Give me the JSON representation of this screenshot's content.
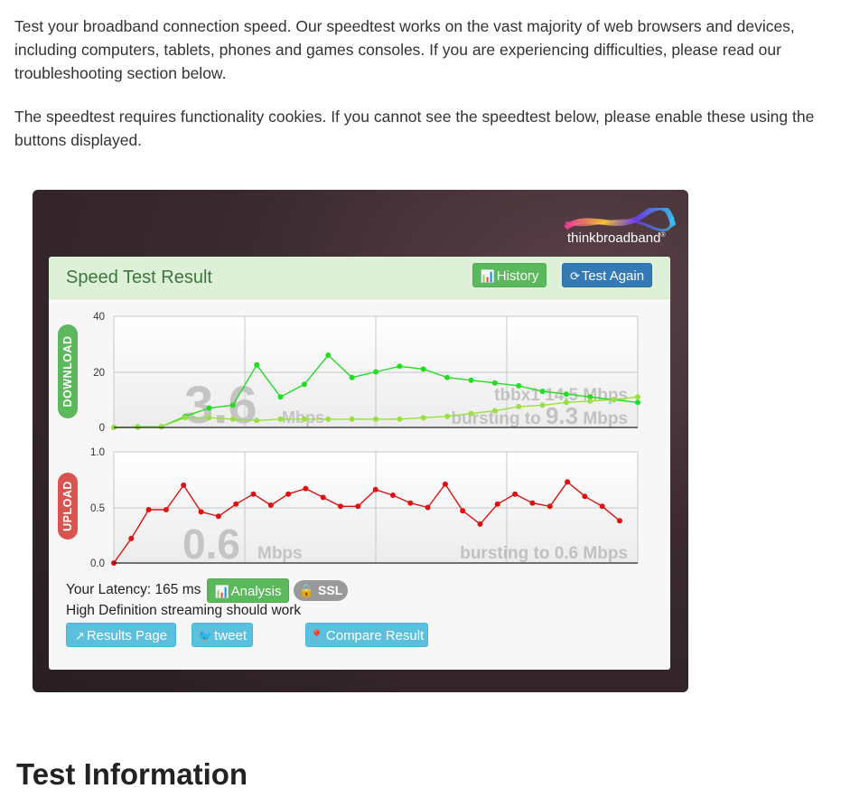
{
  "intro": {
    "p1": "Test your broadband connection speed. Our speedtest works on the vast majority of web browsers and devices, including computers, tablets, phones and games consoles. If you are experiencing difficulties, please read our troubleshooting section below.",
    "p2": "The speedtest requires functionality cookies. If you cannot see the speedtest below, please enable these using the buttons displayed."
  },
  "logo": {
    "text_prefix": "think",
    "text_brand": "broadband",
    "mark": "®"
  },
  "panel": {
    "title": "Speed Test Result",
    "history_button": "History",
    "test_again_button": "Test Again"
  },
  "download": {
    "label": "DOWNLOAD",
    "speed": "3.6",
    "unit": "Mbps",
    "server_text": "tbbx1 14.5 Mbps",
    "bursting_prefix": "bursting to",
    "bursting_value": "9.3",
    "bursting_unit": "Mbps",
    "y_ticks": [
      "40",
      "20",
      "0"
    ],
    "color": "#22dd22",
    "burst_color": "#99e040"
  },
  "upload": {
    "label": "UPLOAD",
    "speed": "0.6",
    "unit": "Mbps",
    "bursting_text": "bursting to 0.6 Mbps",
    "y_ticks": [
      "1.0",
      "0.5",
      "0.0"
    ],
    "color": "#dd1111"
  },
  "chart_data": [
    {
      "type": "line",
      "title": "DOWNLOAD",
      "ylim": [
        0,
        40
      ],
      "grid": true,
      "series": [
        {
          "values": [
            0,
            0.2,
            0.3,
            4,
            7,
            8,
            22.5,
            11,
            15.5,
            26,
            18,
            20,
            22,
            21,
            18,
            17,
            16,
            15,
            13,
            12,
            11,
            10,
            9
          ]
        },
        {
          "values": [
            0,
            0.1,
            0.3,
            3.5,
            3.5,
            3,
            2.5,
            3,
            3,
            3,
            3,
            3,
            3,
            3.5,
            4,
            5,
            6,
            7.5,
            8,
            9,
            9.5,
            10,
            11
          ]
        }
      ]
    },
    {
      "type": "line",
      "title": "UPLOAD",
      "ylim": [
        0,
        1.0
      ],
      "grid": true,
      "series": [
        {
          "values": [
            0,
            0.22,
            0.48,
            0.48,
            0.7,
            0.46,
            0.42,
            0.53,
            0.62,
            0.52,
            0.62,
            0.67,
            0.59,
            0.51,
            0.51,
            0.66,
            0.61,
            0.54,
            0.5,
            0.71,
            0.47,
            0.35,
            0.53,
            0.62,
            0.54,
            0.51,
            0.73,
            0.6,
            0.51,
            0.38
          ]
        }
      ]
    }
  ],
  "footer": {
    "latency_label": "Your Latency:",
    "latency_value": "165 ms",
    "analysis_button": "Analysis",
    "ssl_badge": "SSL",
    "hd_text": "High Definition streaming should work",
    "results_page_button": "Results Page",
    "tweet_button": "tweet",
    "compare_button": "Compare Result"
  },
  "section_heading": "Test Information"
}
